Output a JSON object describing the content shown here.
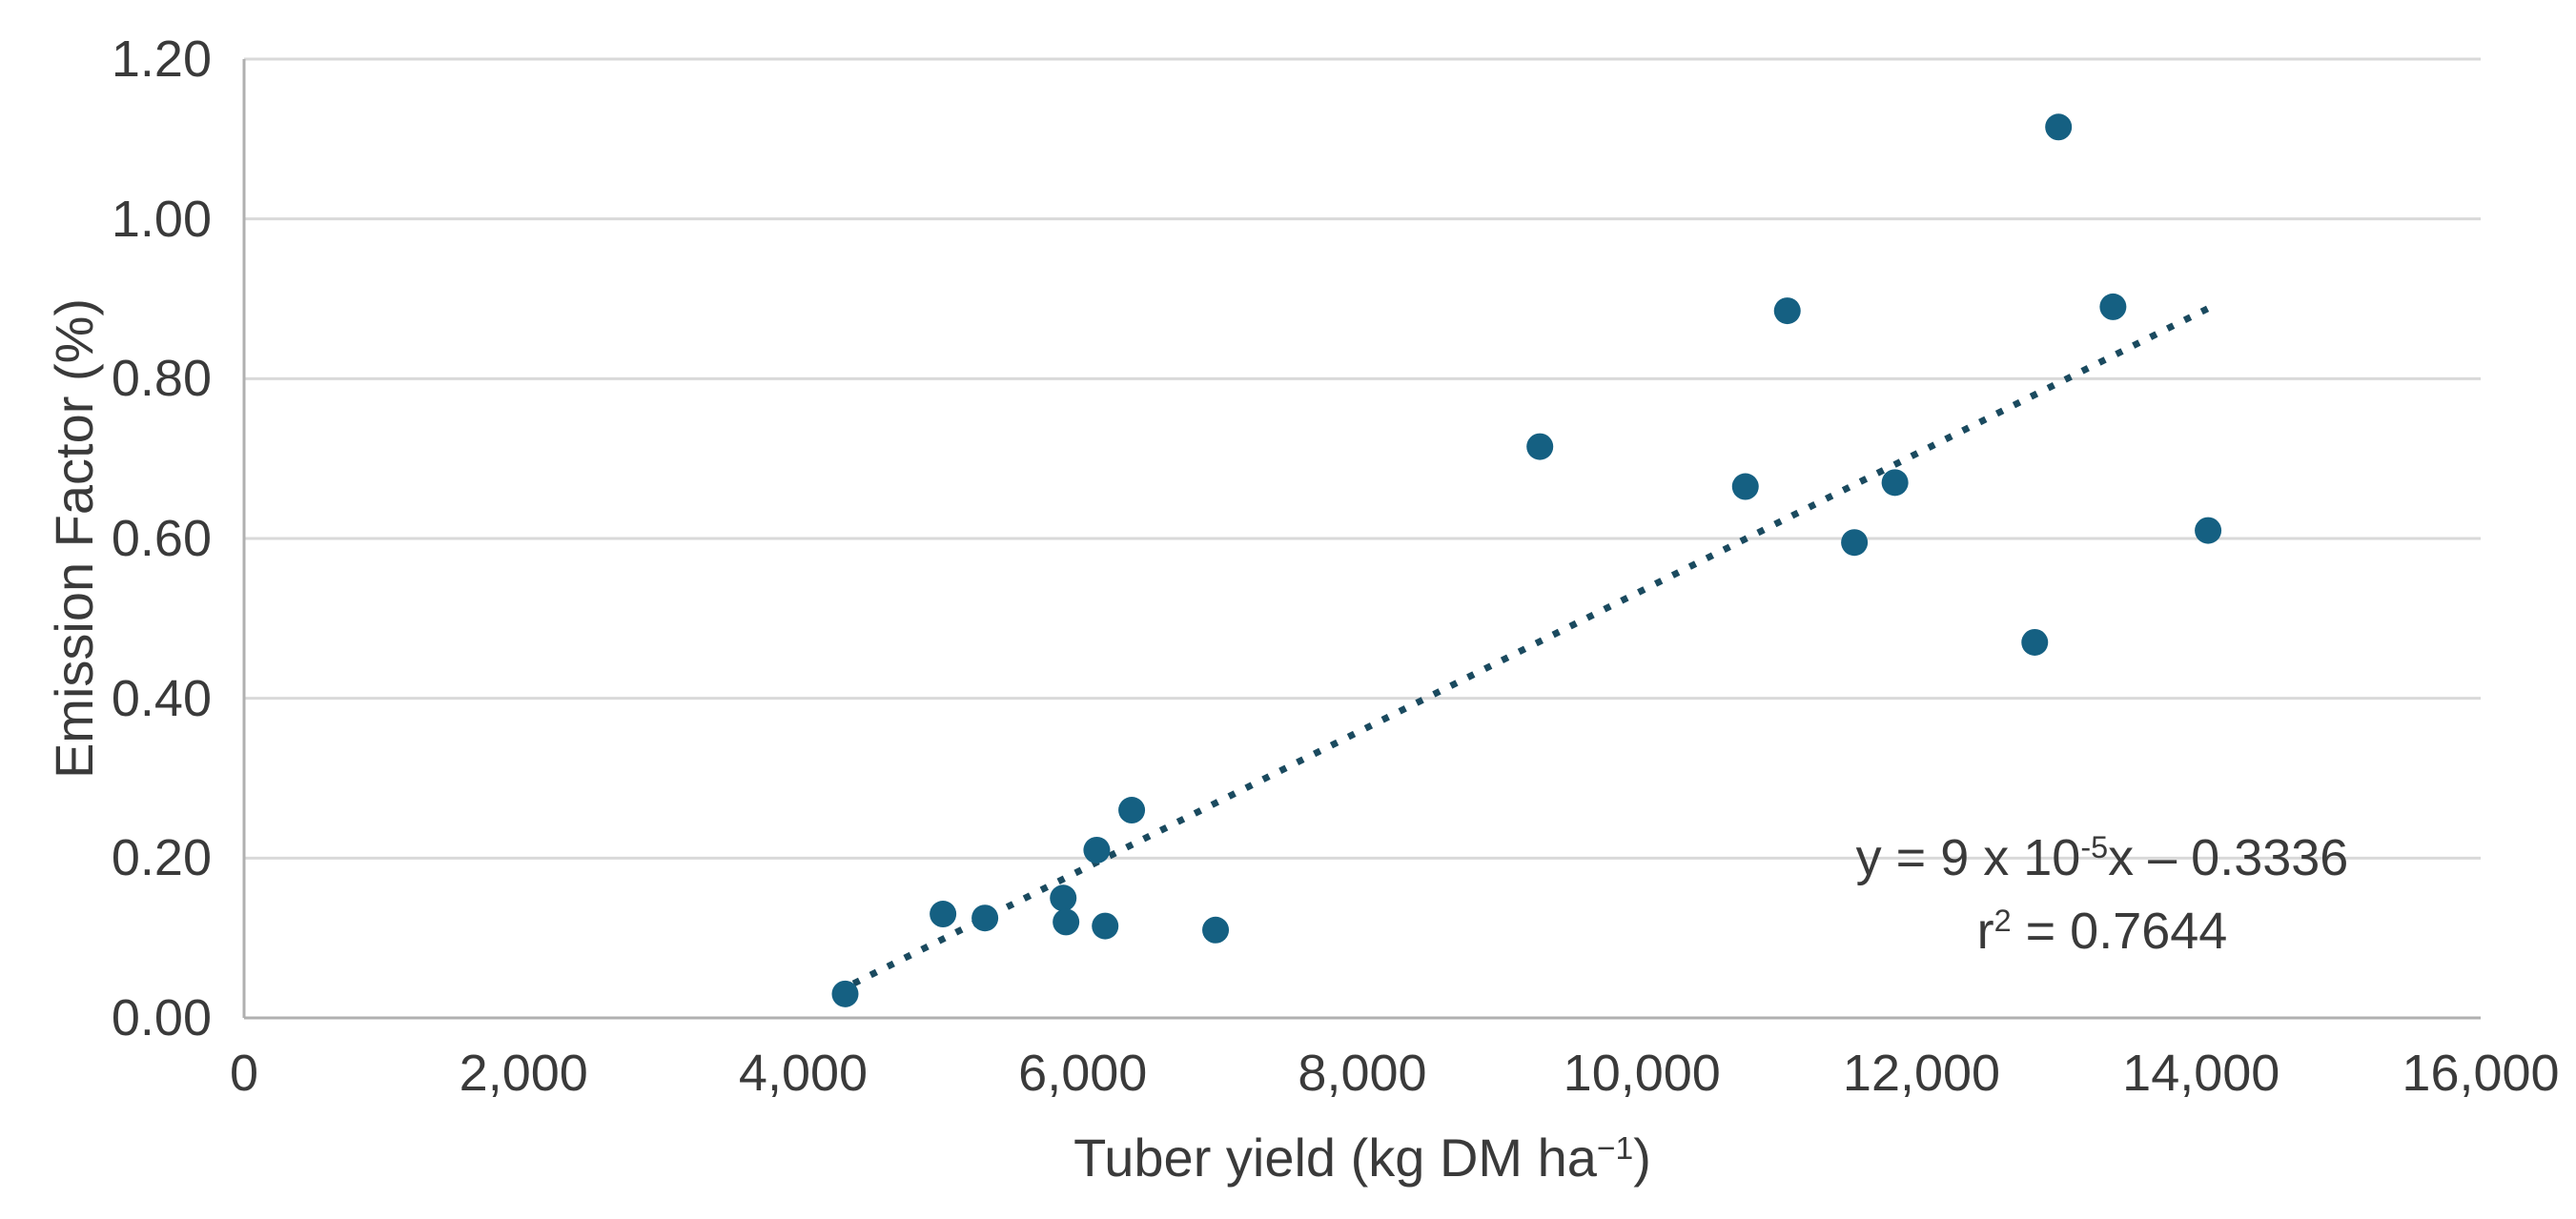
{
  "chart": {
    "background": "#ffffff",
    "colors": {
      "marker": "#156082",
      "trendline": "#1a4a5f",
      "gridline": "#d9d9d9",
      "axisline": "#b0b0b0",
      "text": "#3a3a3a"
    }
  },
  "chart_data": {
    "type": "scatter",
    "title": "",
    "xlabel": "Tuber yield (kg DM ha−1)",
    "xlabel_parts": [
      {
        "t": "Tuber yield (kg DM ha"
      },
      {
        "t": "−1",
        "sup": true
      },
      {
        "t": ")"
      }
    ],
    "ylabel": "Emission Factor (%)",
    "xlim": [
      0,
      16000
    ],
    "ylim": [
      0,
      1.2
    ],
    "x_ticks": [
      0,
      2000,
      4000,
      6000,
      8000,
      10000,
      12000,
      14000,
      16000
    ],
    "x_tick_labels": [
      "0",
      "2,000",
      "4,000",
      "6,000",
      "8,000",
      "10,000",
      "12,000",
      "14,000",
      "16,000"
    ],
    "y_ticks": [
      0,
      0.2,
      0.4,
      0.6,
      0.8,
      1.0,
      1.2
    ],
    "y_tick_labels": [
      "0.00",
      "0.20",
      "0.40",
      "0.60",
      "0.80",
      "1.00",
      "1.20"
    ],
    "grid": "horizontal",
    "legend": "none",
    "points": [
      {
        "x": 4300,
        "y": 0.03
      },
      {
        "x": 5000,
        "y": 0.13
      },
      {
        "x": 5300,
        "y": 0.125
      },
      {
        "x": 5860,
        "y": 0.15
      },
      {
        "x": 5880,
        "y": 0.12
      },
      {
        "x": 6100,
        "y": 0.21
      },
      {
        "x": 6160,
        "y": 0.115
      },
      {
        "x": 6350,
        "y": 0.26
      },
      {
        "x": 6950,
        "y": 0.11
      },
      {
        "x": 9270,
        "y": 0.715
      },
      {
        "x": 10740,
        "y": 0.665
      },
      {
        "x": 11040,
        "y": 0.885
      },
      {
        "x": 11520,
        "y": 0.595
      },
      {
        "x": 11810,
        "y": 0.67
      },
      {
        "x": 12810,
        "y": 0.47
      },
      {
        "x": 12980,
        "y": 1.115
      },
      {
        "x": 13370,
        "y": 0.89
      },
      {
        "x": 14050,
        "y": 0.61
      }
    ],
    "trendline": {
      "style": "dotted",
      "x1": 4360,
      "y1": 0.043,
      "x2": 14050,
      "y2": 0.888,
      "equation": "y = 9 x 10-5x – 0.3336",
      "equation_parts": [
        {
          "t": "y = 9 x 10"
        },
        {
          "t": "-5",
          "sup": true
        },
        {
          "t": "x – 0.3336"
        }
      ],
      "r_squared": "r2 = 0.7644",
      "r_squared_parts": [
        {
          "t": "r"
        },
        {
          "t": "2",
          "sup": true
        },
        {
          "t": " = 0.7644"
        }
      ]
    }
  }
}
